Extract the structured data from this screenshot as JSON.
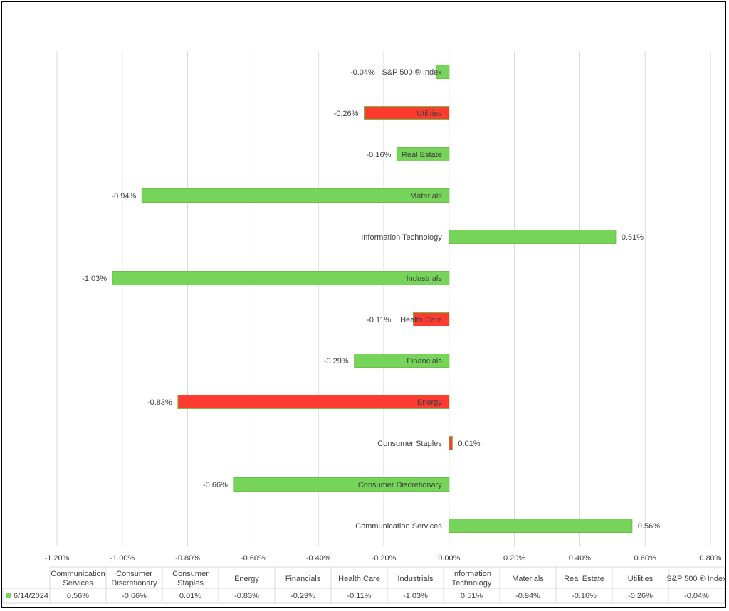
{
  "chart_data": {
    "type": "bar",
    "orientation": "horizontal",
    "categories": [
      "Communication Services",
      "Consumer Discretionary",
      "Consumer Staples",
      "Energy",
      "Financials",
      "Health Care",
      "Industrials",
      "Information Technology",
      "Materials",
      "Real Estate",
      "Utilities",
      "S&P 500 ® Index"
    ],
    "series": [
      {
        "name": "6/14/2024",
        "values": [
          0.56,
          -0.66,
          0.01,
          -0.83,
          -0.29,
          -0.11,
          -1.03,
          0.51,
          -0.94,
          -0.16,
          -0.26,
          -0.04
        ],
        "labels": [
          "0.56%",
          "-0.66%",
          "0.01%",
          "-0.83%",
          "-0.29%",
          "-0.11%",
          "-1.03%",
          "0.51%",
          "-0.94%",
          "-0.16%",
          "-0.26%",
          "-0.04%"
        ],
        "bar_colors": [
          "#77d45a",
          "#77d45a",
          "#ff3b30",
          "#ff3b30",
          "#77d45a",
          "#ff3b30",
          "#77d45a",
          "#77d45a",
          "#77d45a",
          "#77d45a",
          "#ff3b30",
          "#77d45a"
        ],
        "legend_color": "#77d45a"
      }
    ],
    "xlim": [
      -1.2,
      0.8
    ],
    "xticks": [
      -1.2,
      -1.0,
      -0.8,
      -0.6,
      -0.4,
      -0.2,
      0.0,
      0.2,
      0.4,
      0.6,
      0.8
    ],
    "xtick_labels": [
      "-1.20%",
      "-1.00%",
      "-0.80%",
      "-0.60%",
      "-0.40%",
      "-0.20%",
      "0.00%",
      "0.20%",
      "0.40%",
      "0.60%",
      "0.80%"
    ],
    "grid": "vertical",
    "data_table": true,
    "title": "",
    "xlabel": "",
    "ylabel": ""
  }
}
